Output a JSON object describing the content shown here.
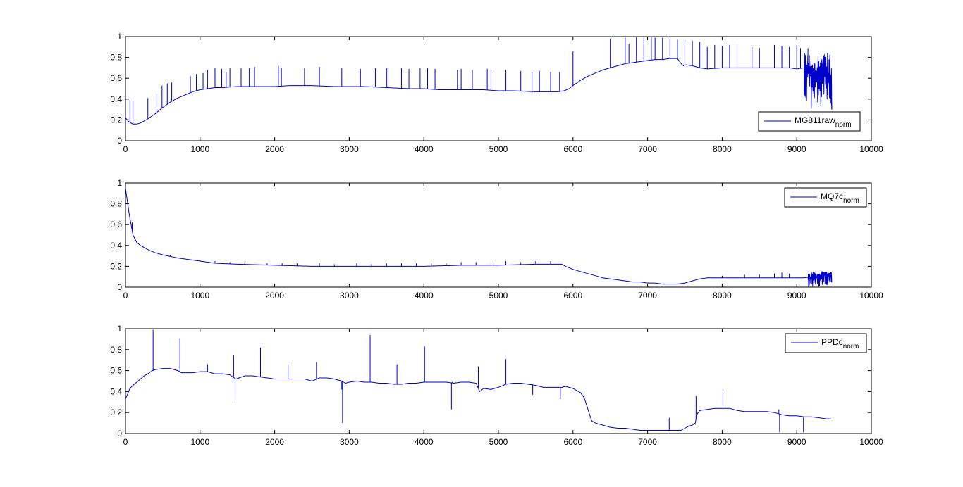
{
  "chart_data": [
    {
      "type": "line",
      "xlim": [
        0,
        10000
      ],
      "ylim": [
        0,
        1
      ],
      "xticks": [
        0,
        1000,
        2000,
        3000,
        4000,
        5000,
        6000,
        7000,
        8000,
        9000,
        10000
      ],
      "yticks": [
        0,
        0.2,
        0.4,
        0.6,
        0.8,
        1
      ],
      "xticklabels": [
        "0",
        "1000",
        "2000",
        "3000",
        "4000",
        "5000",
        "6000",
        "7000",
        "8000",
        "9000",
        "10000"
      ],
      "yticklabels": [
        "0",
        "0.2",
        "0.4",
        "0.6",
        "0.8",
        "1"
      ],
      "grid": false,
      "legend_position": "lower-right",
      "series": [
        {
          "name": "MG811raw",
          "name_subscript": "norm",
          "color": "#0000CC",
          "x": [
            0,
            50,
            100,
            150,
            200,
            300,
            400,
            500,
            600,
            700,
            800,
            900,
            1000,
            1100,
            1200,
            1300,
            1500,
            1700,
            2000,
            2200,
            2500,
            2800,
            3000,
            3200,
            3500,
            3800,
            4000,
            4200,
            4500,
            4800,
            5000,
            5200,
            5500,
            5800,
            5880,
            5950,
            6000,
            6100,
            6200,
            6300,
            6400,
            6500,
            6600,
            6700,
            6800,
            6900,
            7000,
            7100,
            7200,
            7300,
            7400,
            7450,
            7480,
            7500,
            7600,
            7700,
            7800,
            8000,
            8200,
            8400,
            8600,
            8800,
            8900,
            9000,
            9100,
            9200,
            9300,
            9350,
            9400,
            9450,
            9470
          ],
          "y": [
            0.22,
            0.18,
            0.16,
            0.16,
            0.17,
            0.21,
            0.26,
            0.32,
            0.37,
            0.41,
            0.44,
            0.47,
            0.49,
            0.5,
            0.51,
            0.51,
            0.52,
            0.52,
            0.52,
            0.53,
            0.53,
            0.52,
            0.52,
            0.52,
            0.51,
            0.5,
            0.5,
            0.49,
            0.49,
            0.49,
            0.48,
            0.48,
            0.47,
            0.47,
            0.48,
            0.5,
            0.53,
            0.58,
            0.62,
            0.65,
            0.68,
            0.7,
            0.72,
            0.74,
            0.75,
            0.76,
            0.77,
            0.78,
            0.78,
            0.79,
            0.79,
            0.74,
            0.72,
            0.73,
            0.72,
            0.7,
            0.69,
            0.7,
            0.7,
            0.7,
            0.7,
            0.7,
            0.7,
            0.69,
            0.7,
            0.68,
            0.66,
            0.64,
            0.65,
            0.64,
            0.3
          ],
          "spikes_x": [
            60,
            100,
            300,
            420,
            490,
            560,
            620,
            870,
            950,
            1040,
            1100,
            1200,
            1290,
            1350,
            1400,
            1550,
            1660,
            1730,
            2050,
            2090,
            2400,
            2600,
            2900,
            3150,
            3350,
            3500,
            3520,
            3700,
            3800,
            3950,
            4050,
            4150,
            4450,
            4500,
            4650,
            4850,
            4900,
            5100,
            5300,
            5450,
            5550,
            5700,
            5820,
            6000,
            6500,
            6700,
            6750,
            6850,
            6950,
            7050,
            7100,
            7200,
            7300,
            7400,
            7500,
            7600,
            7700,
            7800,
            7900,
            8000,
            8100,
            8200,
            8400,
            8500,
            8700,
            8800,
            8900,
            9000,
            9050,
            9150
          ],
          "spikes_y": [
            0.39,
            0.38,
            0.41,
            0.45,
            0.53,
            0.55,
            0.56,
            0.62,
            0.64,
            0.65,
            0.68,
            0.7,
            0.69,
            0.66,
            0.7,
            0.7,
            0.7,
            0.71,
            0.72,
            0.7,
            0.7,
            0.71,
            0.7,
            0.69,
            0.7,
            0.7,
            0.7,
            0.7,
            0.69,
            0.7,
            0.7,
            0.69,
            0.68,
            0.69,
            0.68,
            0.69,
            0.68,
            0.68,
            0.67,
            0.68,
            0.67,
            0.66,
            0.66,
            0.86,
            0.98,
            0.99,
            0.93,
            1.0,
            0.99,
            1.0,
            0.99,
            0.99,
            0.98,
            0.97,
            0.97,
            0.96,
            0.95,
            0.9,
            0.92,
            0.91,
            0.92,
            0.92,
            0.9,
            0.89,
            0.92,
            0.91,
            0.9,
            0.92,
            0.89,
            0.89
          ],
          "noise_start_x": 9100,
          "noise_end_x": 9470,
          "noise_low": 0.3,
          "noise_high": 0.84
        }
      ]
    },
    {
      "type": "line",
      "xlim": [
        0,
        10000
      ],
      "ylim": [
        0,
        1
      ],
      "xticks": [
        0,
        1000,
        2000,
        3000,
        4000,
        5000,
        6000,
        7000,
        8000,
        9000,
        10000
      ],
      "yticks": [
        0,
        0.2,
        0.4,
        0.6,
        0.8,
        1
      ],
      "xticklabels": [
        "0",
        "1000",
        "2000",
        "3000",
        "4000",
        "5000",
        "6000",
        "7000",
        "8000",
        "9000",
        "10000"
      ],
      "yticklabels": [
        "0",
        "0.2",
        "0.4",
        "0.6",
        "0.8",
        "1"
      ],
      "grid": false,
      "legend_position": "top-right",
      "series": [
        {
          "name": "MQ7c",
          "name_subscript": "norm",
          "color": "#0000CC",
          "x": [
            0,
            20,
            50,
            80,
            100,
            150,
            200,
            300,
            400,
            500,
            700,
            900,
            1000,
            1200,
            1500,
            2000,
            2500,
            3000,
            3500,
            4000,
            4500,
            5000,
            5500,
            5800,
            5850,
            5900,
            6000,
            6100,
            6200,
            6300,
            6400,
            6500,
            6600,
            6700,
            6800,
            6900,
            7000,
            7100,
            7200,
            7300,
            7400,
            7500,
            7600,
            7700,
            7800,
            8000,
            8200,
            8500,
            8800,
            9000,
            9100,
            9200,
            9300,
            9400,
            9470
          ],
          "y": [
            0.95,
            0.85,
            0.7,
            0.58,
            0.5,
            0.43,
            0.4,
            0.36,
            0.33,
            0.31,
            0.28,
            0.26,
            0.25,
            0.23,
            0.22,
            0.21,
            0.2,
            0.2,
            0.2,
            0.2,
            0.21,
            0.21,
            0.22,
            0.22,
            0.22,
            0.2,
            0.17,
            0.15,
            0.13,
            0.11,
            0.09,
            0.08,
            0.07,
            0.06,
            0.05,
            0.05,
            0.04,
            0.04,
            0.03,
            0.03,
            0.03,
            0.04,
            0.06,
            0.08,
            0.09,
            0.09,
            0.09,
            0.09,
            0.09,
            0.09,
            0.09,
            0.1,
            0.11,
            0.12,
            0.13
          ],
          "spikes_x": [
            60,
            90,
            120,
            350,
            600,
            800,
            1000,
            1200,
            1400,
            1600,
            1900,
            2100,
            2300,
            2600,
            2800,
            3100,
            3300,
            3500,
            3700,
            3900,
            4100,
            4300,
            4500,
            4700,
            4900,
            5100,
            5300,
            5500,
            5700,
            8000,
            8300,
            8500,
            8700,
            8800,
            8900
          ],
          "spikes_y": [
            0.65,
            0.62,
            0.48,
            0.34,
            0.31,
            0.27,
            0.26,
            0.25,
            0.24,
            0.24,
            0.23,
            0.23,
            0.23,
            0.23,
            0.22,
            0.23,
            0.22,
            0.23,
            0.23,
            0.23,
            0.23,
            0.23,
            0.24,
            0.24,
            0.24,
            0.25,
            0.24,
            0.25,
            0.25,
            0.11,
            0.12,
            0.12,
            0.13,
            0.14,
            0.13
          ],
          "noise_start_x": 9150,
          "noise_end_x": 9470,
          "noise_low": 0.0,
          "noise_high": 0.15
        }
      ]
    },
    {
      "type": "line",
      "xlim": [
        0,
        10000
      ],
      "ylim": [
        0,
        1
      ],
      "xticks": [
        0,
        1000,
        2000,
        3000,
        4000,
        5000,
        6000,
        7000,
        8000,
        9000,
        10000
      ],
      "yticks": [
        0,
        0.2,
        0.4,
        0.6,
        0.8,
        1
      ],
      "xticklabels": [
        "0",
        "1000",
        "2000",
        "3000",
        "4000",
        "5000",
        "6000",
        "7000",
        "8000",
        "9000",
        "10000"
      ],
      "yticklabels": [
        "0",
        "0.2",
        "0.4",
        "0.6",
        "0.8",
        "1"
      ],
      "grid": false,
      "legend_position": "top-right",
      "series": [
        {
          "name": "PPDc",
          "name_subscript": "norm",
          "color": "#0000CC",
          "x": [
            0,
            30,
            60,
            100,
            150,
            200,
            250,
            300,
            360,
            400,
            500,
            600,
            700,
            750,
            800,
            900,
            1000,
            1100,
            1200,
            1300,
            1400,
            1480,
            1600,
            1700,
            1800,
            2000,
            2200,
            2400,
            2500,
            2600,
            2700,
            2800,
            2900,
            2950,
            3000,
            3100,
            3200,
            3300,
            3400,
            3500,
            3600,
            3700,
            3800,
            3900,
            4000,
            4100,
            4200,
            4300,
            4400,
            4500,
            4600,
            4700,
            4750,
            4800,
            4900,
            5000,
            5100,
            5200,
            5300,
            5400,
            5500,
            5600,
            5700,
            5800,
            5850,
            5900,
            6000,
            6100,
            6150,
            6200,
            6250,
            6300,
            6400,
            6500,
            6600,
            6700,
            6800,
            6900,
            7000,
            7100,
            7200,
            7300,
            7400,
            7450,
            7500,
            7550,
            7600,
            7640,
            7660,
            7700,
            7800,
            7900,
            8000,
            8100,
            8200,
            8300,
            8400,
            8450,
            8500,
            8600,
            8700,
            8800,
            8900,
            9000,
            9100,
            9200,
            9300,
            9400,
            9460
          ],
          "y": [
            0.33,
            0.38,
            0.43,
            0.46,
            0.49,
            0.52,
            0.55,
            0.57,
            0.6,
            0.61,
            0.62,
            0.62,
            0.6,
            0.58,
            0.58,
            0.58,
            0.59,
            0.59,
            0.57,
            0.57,
            0.56,
            0.52,
            0.55,
            0.55,
            0.54,
            0.52,
            0.52,
            0.52,
            0.5,
            0.53,
            0.53,
            0.52,
            0.5,
            0.48,
            0.49,
            0.5,
            0.49,
            0.49,
            0.48,
            0.48,
            0.47,
            0.47,
            0.48,
            0.48,
            0.49,
            0.49,
            0.49,
            0.49,
            0.48,
            0.49,
            0.49,
            0.48,
            0.4,
            0.43,
            0.42,
            0.44,
            0.47,
            0.48,
            0.48,
            0.47,
            0.46,
            0.44,
            0.44,
            0.44,
            0.44,
            0.45,
            0.43,
            0.39,
            0.34,
            0.23,
            0.12,
            0.1,
            0.08,
            0.06,
            0.05,
            0.05,
            0.04,
            0.03,
            0.03,
            0.03,
            0.03,
            0.03,
            0.03,
            0.03,
            0.05,
            0.07,
            0.08,
            0.1,
            0.18,
            0.22,
            0.23,
            0.24,
            0.24,
            0.24,
            0.22,
            0.21,
            0.21,
            0.21,
            0.21,
            0.21,
            0.2,
            0.18,
            0.17,
            0.17,
            0.16,
            0.16,
            0.15,
            0.14,
            0.14
          ],
          "spikes_x": [
            370,
            730,
            1100,
            1450,
            1470,
            1810,
            2180,
            2200,
            2560,
            2900,
            2910,
            3280,
            3640,
            4010,
            4370,
            4380,
            4730,
            5100,
            5460,
            5830,
            7290,
            7650,
            8010,
            8760,
            8770,
            9090
          ],
          "spikes_y": [
            0.99,
            0.91,
            0.66,
            0.75,
            0.31,
            0.82,
            0.66,
            0.52,
            0.68,
            0.42,
            0.1,
            0.94,
            0.66,
            0.83,
            0.23,
            0.49,
            0.64,
            0.71,
            0.37,
            0.33,
            0.15,
            0.36,
            0.4,
            0.23,
            0.01,
            0.01
          ]
        }
      ]
    }
  ]
}
